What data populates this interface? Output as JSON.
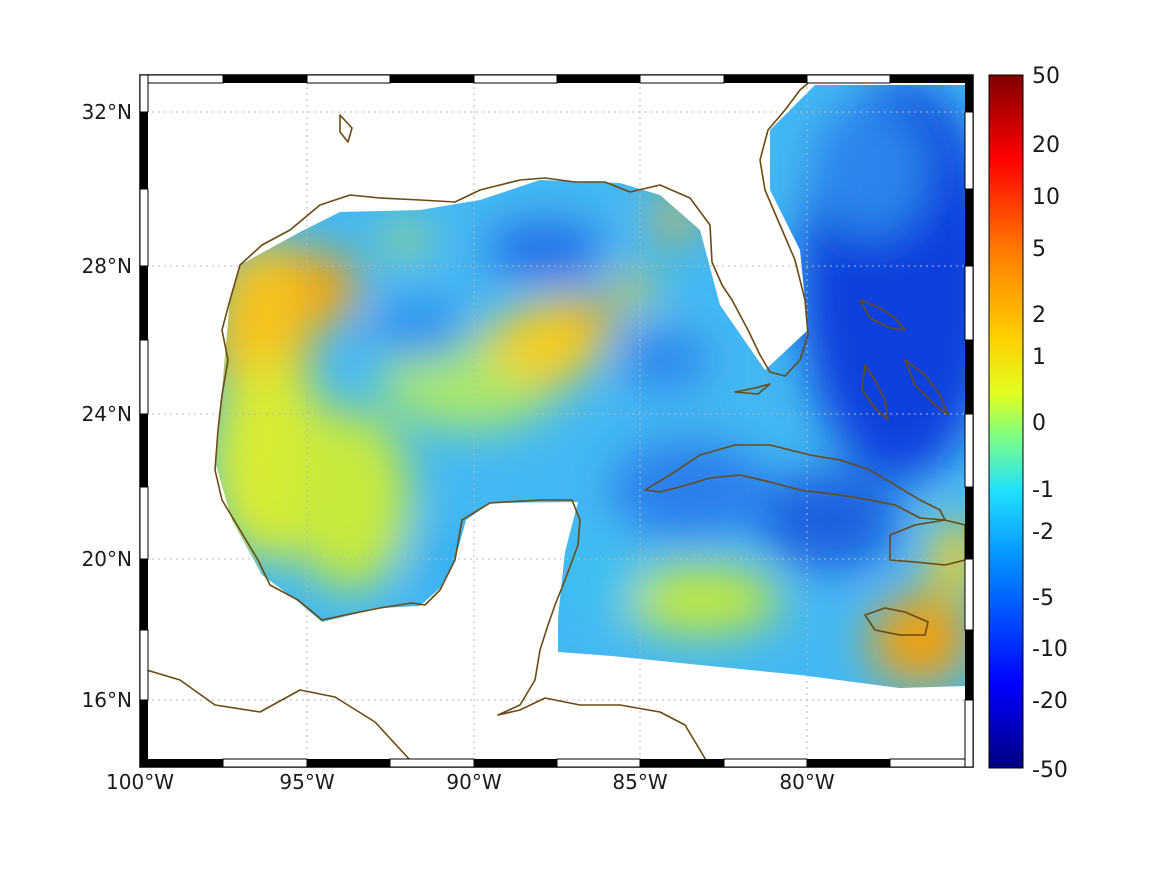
{
  "map": {
    "lon_range": [
      -100,
      -75
    ],
    "lat_range": [
      14,
      33
    ],
    "lon_ticks": [
      {
        "value": -100,
        "label": "100°W"
      },
      {
        "value": -95,
        "label": "95°W"
      },
      {
        "value": -90,
        "label": "90°W"
      },
      {
        "value": -85,
        "label": "85°W"
      },
      {
        "value": -80,
        "label": "80°W"
      }
    ],
    "lat_ticks": [
      {
        "value": 32,
        "label": "32°N"
      },
      {
        "value": 28,
        "label": "28°N"
      },
      {
        "value": 24,
        "label": "24°N"
      },
      {
        "value": 20,
        "label": "20°N"
      },
      {
        "value": 16,
        "label": "16°N"
      }
    ],
    "grid": true,
    "coastline_color": "#6b4a14",
    "field_colormap": "jet"
  },
  "colorbar": {
    "ticks": [
      "50",
      "20",
      "10",
      "5",
      "2",
      "1",
      "0",
      "-1",
      "-2",
      "-5",
      "-10",
      "-20",
      "-50"
    ],
    "colormap": [
      "#800000",
      "#ff0000",
      "#ff8000",
      "#ffd000",
      "#e0ff20",
      "#80ff80",
      "#20e0ff",
      "#0080ff",
      "#0000ff",
      "#000080"
    ]
  }
}
